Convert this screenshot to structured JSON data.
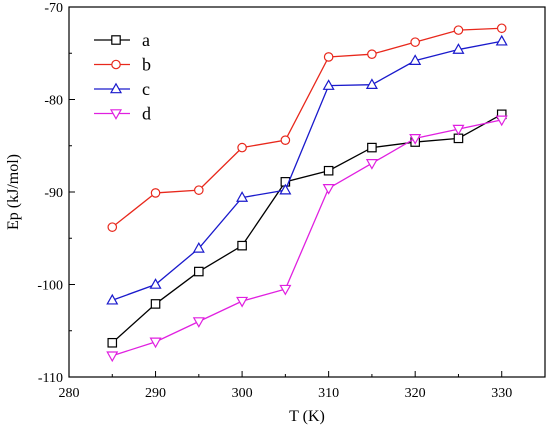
{
  "chart_data": {
    "type": "line",
    "title": "",
    "xlabel": "T (K)",
    "ylabel": "Ep (kJ/mol)",
    "xlim": [
      280,
      335
    ],
    "ylim": [
      -110,
      -70
    ],
    "xticks": [
      280,
      290,
      300,
      310,
      320,
      330
    ],
    "yticks": [
      -110,
      -100,
      -90,
      -80,
      -70
    ],
    "grid": false,
    "legend_position": "top-left",
    "x": [
      285,
      290,
      295,
      300,
      305,
      310,
      315,
      320,
      325,
      330
    ],
    "series": [
      {
        "name": "a",
        "color": "#000000",
        "marker": "square",
        "values": [
          -106.3,
          -102.1,
          -98.6,
          -95.8,
          -88.9,
          -87.7,
          -85.2,
          -84.6,
          -84.2,
          -81.6
        ]
      },
      {
        "name": "b",
        "color": "#e8281c",
        "marker": "circle",
        "values": [
          -93.8,
          -90.1,
          -89.8,
          -85.2,
          -84.4,
          -75.4,
          -75.1,
          -73.8,
          -72.5,
          -72.3
        ]
      },
      {
        "name": "c",
        "color": "#1a1acc",
        "marker": "triangle-up",
        "values": [
          -101.7,
          -100.0,
          -96.1,
          -90.6,
          -89.8,
          -78.5,
          -78.4,
          -75.8,
          -74.6,
          -73.7
        ]
      },
      {
        "name": "d",
        "color": "#e020e0",
        "marker": "triangle-down",
        "values": [
          -107.7,
          -106.2,
          -104.0,
          -101.8,
          -100.5,
          -89.6,
          -86.9,
          -84.2,
          -83.2,
          -82.2
        ]
      }
    ]
  }
}
